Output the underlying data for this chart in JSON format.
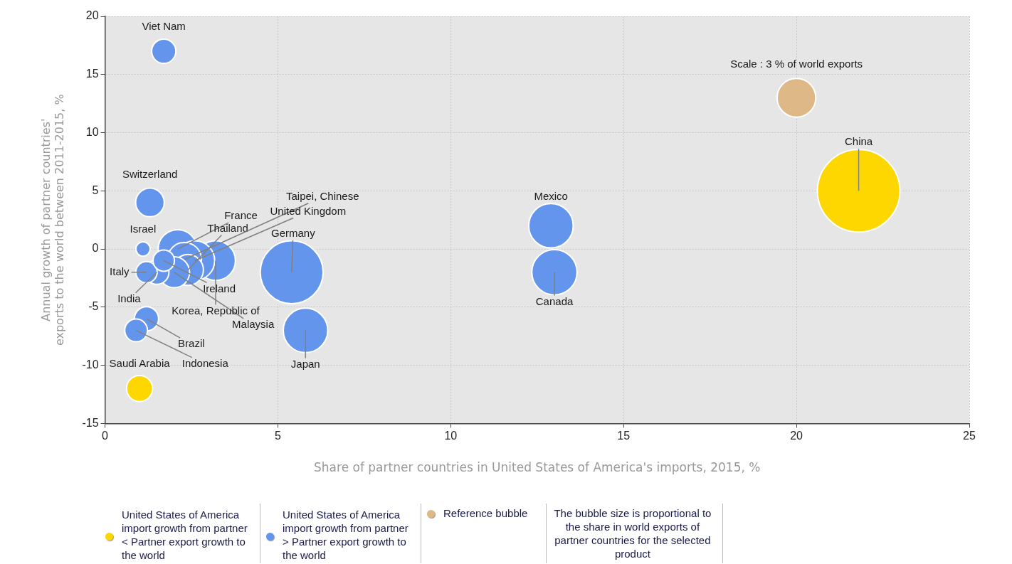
{
  "chart_data": {
    "type": "bubble",
    "xlabel": "Share of partner countries in United States of America's imports, 2015, %",
    "ylabel": "Annual growth of partner countries' exports to the world between 2011-2015, %",
    "xlim": [
      0,
      25
    ],
    "xticks": [
      0,
      5,
      10,
      15,
      20,
      25
    ],
    "ylim": [
      -15,
      20
    ],
    "yticks": [
      -15,
      -10,
      -5,
      0,
      5,
      10,
      15,
      20
    ],
    "grid": true,
    "legend": "bottom",
    "series": [
      {
        "name": "United States of America import growth from partner < Partner export growth to the world",
        "color": "#ffd700",
        "x": [
          21.8,
          1.0
        ],
        "values": [
          5,
          -12
        ],
        "sizes": [
          1,
          0.1
        ]
      },
      {
        "name": "United States of America import growth from partner > Partner export growth to the world",
        "color": "#6495ed",
        "x": [
          5.4,
          13.0,
          12.9,
          5.8,
          3.2,
          2.1,
          2.6,
          2.3,
          2.4,
          2.0,
          1.3,
          1.7,
          1.5,
          1.2,
          0.9,
          1.2,
          1.7,
          1.1
        ],
        "values": [
          -2,
          -2,
          2,
          -7,
          -1,
          0,
          -1,
          -0.9,
          -1.8,
          -2,
          4,
          17,
          -2,
          -6,
          -7,
          -2,
          -1,
          0
        ],
        "sizes": [
          0.58,
          0.3,
          0.29,
          0.29,
          0.23,
          0.22,
          0.23,
          0.17,
          0.14,
          0.14,
          0.12,
          0.086,
          0.086,
          0.086,
          0.076,
          0.067,
          0.067,
          0.03
        ]
      },
      {
        "name": "Reference bubble",
        "color": "#deb887",
        "x": [
          20
        ],
        "values": [
          13
        ],
        "sizes": [
          0.22
        ]
      }
    ],
    "annotations": [
      {
        "text": "Viet Nam",
        "x": 1.7,
        "y": 17
      },
      {
        "text": "Switzerland",
        "x": 1.3,
        "y": 4
      },
      {
        "text": "Israel",
        "x": 1.1,
        "y": 0
      },
      {
        "text": "Italy",
        "x": 1.2,
        "y": -2
      },
      {
        "text": "India",
        "x": 1.5,
        "y": -2
      },
      {
        "text": "Ireland",
        "x": 1.7,
        "y": -1
      },
      {
        "text": "France",
        "x": 2.1,
        "y": 0
      },
      {
        "text": "Malaysia",
        "x": 2.0,
        "y": -2
      },
      {
        "text": "Thailand",
        "x": 2.4,
        "y": -1.8
      },
      {
        "text": "Taipei, Chinese",
        "x": 2.3,
        "y": -0.9
      },
      {
        "text": "United Kingdom",
        "x": 2.6,
        "y": -1
      },
      {
        "text": "Korea, Republic of",
        "x": 3.2,
        "y": -1
      },
      {
        "text": "Germany",
        "x": 5.4,
        "y": -2
      },
      {
        "text": "Japan",
        "x": 5.8,
        "y": -7
      },
      {
        "text": "Brazil",
        "x": 1.2,
        "y": -6
      },
      {
        "text": "Indonesia",
        "x": 0.9,
        "y": -7
      },
      {
        "text": "Saudi Arabia",
        "x": 1.0,
        "y": -12
      },
      {
        "text": "Mexico",
        "x": 12.9,
        "y": 2
      },
      {
        "text": "Canada",
        "x": 13.0,
        "y": -2
      },
      {
        "text": "China",
        "x": 21.8,
        "y": 5
      },
      {
        "text": "Scale : 3 % of world exports",
        "x": 20,
        "y": 13
      },
      "The bubble size is proportional to the share in world exports of partner countries for the selected product"
    ]
  }
}
